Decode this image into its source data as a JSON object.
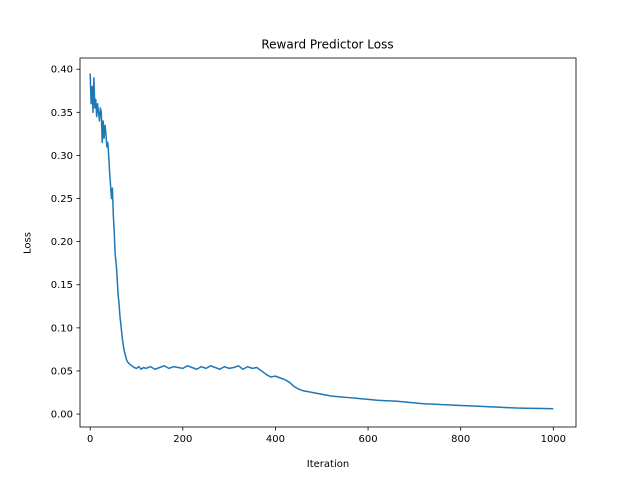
{
  "chart_data": {
    "type": "line",
    "title": "Reward Predictor Loss",
    "xlabel": "Iteration",
    "ylabel": "Loss",
    "xlim": [
      -22,
      1049
    ],
    "ylim": [
      -0.015,
      0.413
    ],
    "xticks": [
      0,
      200,
      400,
      600,
      800,
      1000
    ],
    "xtick_labels": [
      "0",
      "200",
      "400",
      "600",
      "800",
      "1000"
    ],
    "yticks": [
      0.0,
      0.05,
      0.1,
      0.15,
      0.2,
      0.25,
      0.3,
      0.35,
      0.4
    ],
    "ytick_labels": [
      "0.00",
      "0.05",
      "0.10",
      "0.15",
      "0.20",
      "0.25",
      "0.30",
      "0.35",
      "0.40"
    ],
    "grid": false,
    "series": [
      {
        "color": "#1f77b4",
        "x": [
          0,
          2,
          4,
          6,
          8,
          10,
          12,
          14,
          16,
          18,
          20,
          22,
          24,
          26,
          28,
          30,
          32,
          34,
          36,
          38,
          40,
          42,
          44,
          46,
          48,
          50,
          52,
          54,
          56,
          58,
          60,
          62,
          64,
          66,
          68,
          70,
          72,
          74,
          76,
          78,
          80,
          85,
          90,
          95,
          100,
          105,
          110,
          115,
          120,
          130,
          140,
          150,
          160,
          170,
          180,
          190,
          200,
          210,
          220,
          230,
          240,
          250,
          260,
          270,
          280,
          290,
          300,
          310,
          320,
          330,
          340,
          350,
          360,
          370,
          380,
          390,
          400,
          410,
          420,
          430,
          440,
          450,
          460,
          470,
          480,
          490,
          500,
          520,
          540,
          560,
          580,
          600,
          620,
          640,
          660,
          680,
          700,
          720,
          740,
          760,
          780,
          800,
          820,
          840,
          860,
          880,
          900,
          920,
          940,
          960,
          980,
          1000
        ],
        "y": [
          0.395,
          0.36,
          0.38,
          0.35,
          0.39,
          0.355,
          0.365,
          0.345,
          0.36,
          0.35,
          0.34,
          0.355,
          0.35,
          0.315,
          0.34,
          0.32,
          0.335,
          0.325,
          0.31,
          0.315,
          0.3,
          0.28,
          0.265,
          0.25,
          0.262,
          0.23,
          0.21,
          0.185,
          0.175,
          0.16,
          0.14,
          0.13,
          0.115,
          0.105,
          0.095,
          0.085,
          0.078,
          0.072,
          0.068,
          0.064,
          0.061,
          0.058,
          0.056,
          0.054,
          0.053,
          0.055,
          0.052,
          0.054,
          0.053,
          0.055,
          0.052,
          0.054,
          0.056,
          0.053,
          0.055,
          0.054,
          0.053,
          0.056,
          0.054,
          0.052,
          0.055,
          0.053,
          0.056,
          0.054,
          0.052,
          0.055,
          0.053,
          0.054,
          0.056,
          0.052,
          0.055,
          0.053,
          0.054,
          0.05,
          0.046,
          0.043,
          0.044,
          0.042,
          0.04,
          0.037,
          0.032,
          0.029,
          0.027,
          0.026,
          0.025,
          0.024,
          0.023,
          0.021,
          0.02,
          0.019,
          0.018,
          0.017,
          0.016,
          0.0155,
          0.015,
          0.014,
          0.013,
          0.012,
          0.0115,
          0.011,
          0.0105,
          0.01,
          0.0095,
          0.009,
          0.0085,
          0.008,
          0.0075,
          0.007,
          0.0068,
          0.0066,
          0.0064,
          0.0062
        ]
      }
    ]
  }
}
